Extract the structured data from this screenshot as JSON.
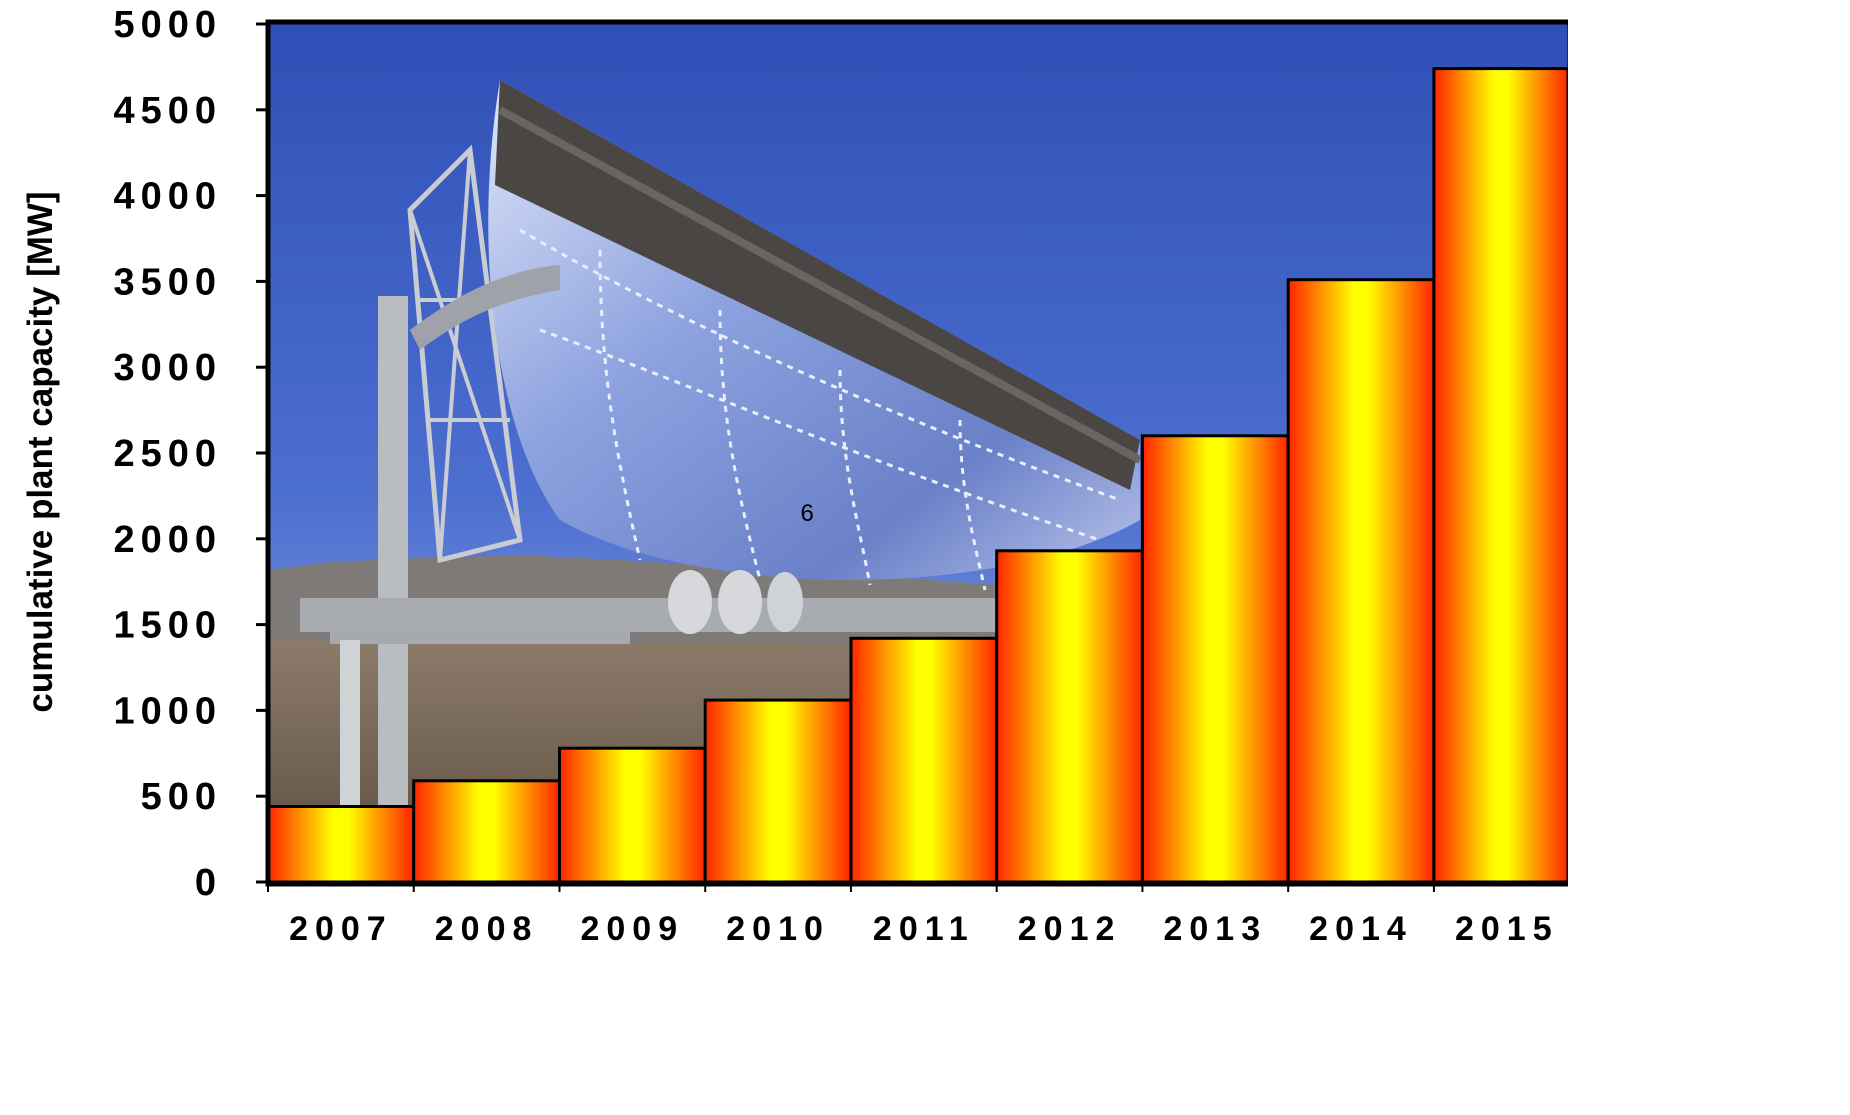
{
  "chart_data": {
    "type": "bar",
    "categories": [
      "2007",
      "2008",
      "2009",
      "2010",
      "2011",
      "2012",
      "2013",
      "2014",
      "2015"
    ],
    "values": [
      440,
      590,
      780,
      1060,
      1420,
      1930,
      2600,
      3510,
      4740
    ],
    "title": "",
    "xlabel": "",
    "ylabel": "cumulative plant capacity  [MW]",
    "ylim": [
      0,
      5000
    ],
    "yticks": [
      0,
      500,
      1000,
      1500,
      2000,
      2500,
      3000,
      3500,
      4000,
      4500,
      5000
    ],
    "ytick_labels": [
      "0",
      "500",
      "1000",
      "1500",
      "2000",
      "2500",
      "3000",
      "3500",
      "4000",
      "4500",
      "5000"
    ],
    "grid": false,
    "legend": "none",
    "bar_gradient_colors": [
      "#ff2400",
      "#ffff00"
    ],
    "background_image": "parabolic-trough-solar-collector-photo",
    "annotations": [
      {
        "text": "6",
        "x": "2010-2011",
        "y": 2150
      }
    ]
  }
}
